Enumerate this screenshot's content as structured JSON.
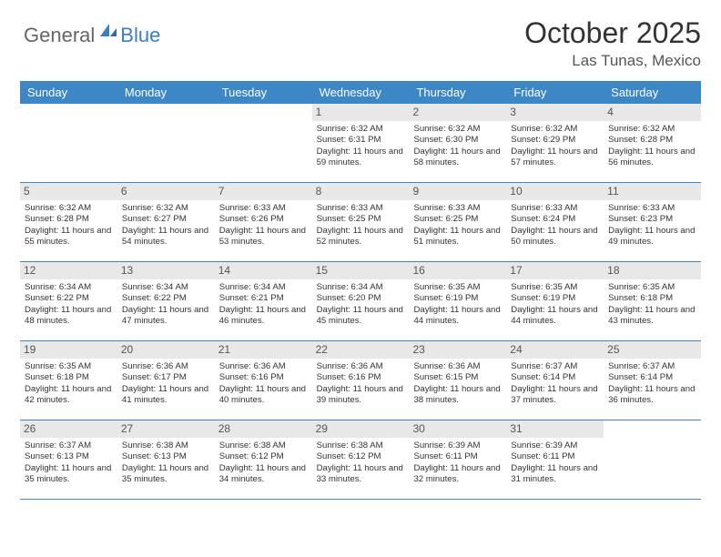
{
  "logo": {
    "text1": "General",
    "text2": "Blue"
  },
  "title": "October 2025",
  "location": "Las Tunas, Mexico",
  "colors": {
    "header_bg": "#3d87c7",
    "header_text": "#ffffff",
    "daynum_bg": "#e8e8e8",
    "border": "#3d87c7",
    "logo_gray": "#666666",
    "logo_blue": "#3a7fc4"
  },
  "weekdays": [
    "Sunday",
    "Monday",
    "Tuesday",
    "Wednesday",
    "Thursday",
    "Friday",
    "Saturday"
  ],
  "weeks": [
    [
      null,
      null,
      null,
      {
        "n": "1",
        "sr": "6:32 AM",
        "ss": "6:31 PM",
        "dl": "11 hours and 59 minutes."
      },
      {
        "n": "2",
        "sr": "6:32 AM",
        "ss": "6:30 PM",
        "dl": "11 hours and 58 minutes."
      },
      {
        "n": "3",
        "sr": "6:32 AM",
        "ss": "6:29 PM",
        "dl": "11 hours and 57 minutes."
      },
      {
        "n": "4",
        "sr": "6:32 AM",
        "ss": "6:28 PM",
        "dl": "11 hours and 56 minutes."
      }
    ],
    [
      {
        "n": "5",
        "sr": "6:32 AM",
        "ss": "6:28 PM",
        "dl": "11 hours and 55 minutes."
      },
      {
        "n": "6",
        "sr": "6:32 AM",
        "ss": "6:27 PM",
        "dl": "11 hours and 54 minutes."
      },
      {
        "n": "7",
        "sr": "6:33 AM",
        "ss": "6:26 PM",
        "dl": "11 hours and 53 minutes."
      },
      {
        "n": "8",
        "sr": "6:33 AM",
        "ss": "6:25 PM",
        "dl": "11 hours and 52 minutes."
      },
      {
        "n": "9",
        "sr": "6:33 AM",
        "ss": "6:25 PM",
        "dl": "11 hours and 51 minutes."
      },
      {
        "n": "10",
        "sr": "6:33 AM",
        "ss": "6:24 PM",
        "dl": "11 hours and 50 minutes."
      },
      {
        "n": "11",
        "sr": "6:33 AM",
        "ss": "6:23 PM",
        "dl": "11 hours and 49 minutes."
      }
    ],
    [
      {
        "n": "12",
        "sr": "6:34 AM",
        "ss": "6:22 PM",
        "dl": "11 hours and 48 minutes."
      },
      {
        "n": "13",
        "sr": "6:34 AM",
        "ss": "6:22 PM",
        "dl": "11 hours and 47 minutes."
      },
      {
        "n": "14",
        "sr": "6:34 AM",
        "ss": "6:21 PM",
        "dl": "11 hours and 46 minutes."
      },
      {
        "n": "15",
        "sr": "6:34 AM",
        "ss": "6:20 PM",
        "dl": "11 hours and 45 minutes."
      },
      {
        "n": "16",
        "sr": "6:35 AM",
        "ss": "6:19 PM",
        "dl": "11 hours and 44 minutes."
      },
      {
        "n": "17",
        "sr": "6:35 AM",
        "ss": "6:19 PM",
        "dl": "11 hours and 44 minutes."
      },
      {
        "n": "18",
        "sr": "6:35 AM",
        "ss": "6:18 PM",
        "dl": "11 hours and 43 minutes."
      }
    ],
    [
      {
        "n": "19",
        "sr": "6:35 AM",
        "ss": "6:18 PM",
        "dl": "11 hours and 42 minutes."
      },
      {
        "n": "20",
        "sr": "6:36 AM",
        "ss": "6:17 PM",
        "dl": "11 hours and 41 minutes."
      },
      {
        "n": "21",
        "sr": "6:36 AM",
        "ss": "6:16 PM",
        "dl": "11 hours and 40 minutes."
      },
      {
        "n": "22",
        "sr": "6:36 AM",
        "ss": "6:16 PM",
        "dl": "11 hours and 39 minutes."
      },
      {
        "n": "23",
        "sr": "6:36 AM",
        "ss": "6:15 PM",
        "dl": "11 hours and 38 minutes."
      },
      {
        "n": "24",
        "sr": "6:37 AM",
        "ss": "6:14 PM",
        "dl": "11 hours and 37 minutes."
      },
      {
        "n": "25",
        "sr": "6:37 AM",
        "ss": "6:14 PM",
        "dl": "11 hours and 36 minutes."
      }
    ],
    [
      {
        "n": "26",
        "sr": "6:37 AM",
        "ss": "6:13 PM",
        "dl": "11 hours and 35 minutes."
      },
      {
        "n": "27",
        "sr": "6:38 AM",
        "ss": "6:13 PM",
        "dl": "11 hours and 35 minutes."
      },
      {
        "n": "28",
        "sr": "6:38 AM",
        "ss": "6:12 PM",
        "dl": "11 hours and 34 minutes."
      },
      {
        "n": "29",
        "sr": "6:38 AM",
        "ss": "6:12 PM",
        "dl": "11 hours and 33 minutes."
      },
      {
        "n": "30",
        "sr": "6:39 AM",
        "ss": "6:11 PM",
        "dl": "11 hours and 32 minutes."
      },
      {
        "n": "31",
        "sr": "6:39 AM",
        "ss": "6:11 PM",
        "dl": "11 hours and 31 minutes."
      },
      null
    ]
  ],
  "labels": {
    "sunrise": "Sunrise:",
    "sunset": "Sunset:",
    "daylight": "Daylight:"
  }
}
